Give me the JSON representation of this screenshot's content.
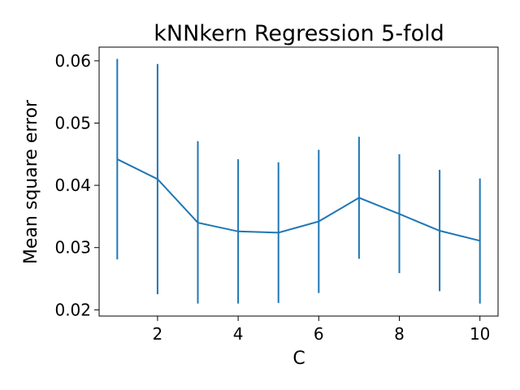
{
  "chart_data": {
    "type": "line",
    "title": "kNNkern Regression 5-fold",
    "xlabel": "C",
    "ylabel": "Mean square error",
    "xlim": [
      0.55,
      10.45
    ],
    "ylim": [
      0.019,
      0.0622
    ],
    "x_ticks": [
      2,
      4,
      6,
      8,
      10
    ],
    "x_tick_labels": [
      "2",
      "4",
      "6",
      "8",
      "10"
    ],
    "y_ticks": [
      0.02,
      0.03,
      0.04,
      0.05,
      0.06
    ],
    "y_tick_labels": [
      "0.02",
      "0.03",
      "0.04",
      "0.05",
      "0.06"
    ],
    "grid": false,
    "color": "#1f77b4",
    "series": [
      {
        "x": [
          1,
          2,
          3,
          4,
          5,
          6,
          7,
          8,
          9,
          10
        ],
        "y": [
          0.0442,
          0.041,
          0.034,
          0.0326,
          0.0324,
          0.0342,
          0.038,
          0.0354,
          0.0327,
          0.0311
        ],
        "error_low": [
          0.0281,
          0.0225,
          0.021,
          0.021,
          0.0211,
          0.0227,
          0.0282,
          0.0259,
          0.023,
          0.021
        ],
        "error_high": [
          0.0603,
          0.0595,
          0.0471,
          0.0442,
          0.0437,
          0.0457,
          0.0478,
          0.045,
          0.0425,
          0.0411
        ]
      }
    ]
  }
}
